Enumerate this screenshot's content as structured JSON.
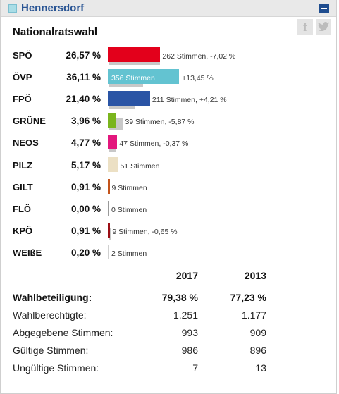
{
  "header": {
    "title": "Hennersdorf"
  },
  "section_title": "Nationalratswahl",
  "colors": {
    "header_title": "#2a5594",
    "collapse_button": "#1f4d8f"
  },
  "icons": {
    "facebook": "f",
    "twitter": "❧"
  },
  "parties": [
    {
      "name": "SPÖ",
      "percent": "26,57 %",
      "info": "262 Stimmen, -7,02 %",
      "share": 26.57,
      "previous_share": 33.59,
      "color": "#e3001b",
      "label_inside": false
    },
    {
      "name": "ÖVP",
      "percent": "36,11 %",
      "info": "356 Stimmen",
      "change": "+13,45 %",
      "share": 36.11,
      "previous_share": 22.66,
      "color": "#63c3d1",
      "label_inside": true
    },
    {
      "name": "FPÖ",
      "percent": "21,40 %",
      "info": "211 Stimmen, +4,21 %",
      "share": 21.4,
      "previous_share": 17.19,
      "color": "#2a54a5",
      "label_inside": false
    },
    {
      "name": "GRÜNE",
      "percent": "3,96 %",
      "info": "39 Stimmen, -5,87 %",
      "share": 3.96,
      "previous_share": 9.83,
      "color": "#7ab51d",
      "label_inside": false
    },
    {
      "name": "NEOS",
      "percent": "4,77 %",
      "info": "47 Stimmen, -0,37 %",
      "share": 4.77,
      "previous_share": 5.14,
      "color": "#e3177d",
      "label_inside": false
    },
    {
      "name": "PILZ",
      "percent": "5,17 %",
      "info": "51 Stimmen",
      "share": 5.17,
      "previous_share": null,
      "color": "#ece0c4",
      "label_inside": false
    },
    {
      "name": "GILT",
      "percent": "0,91 %",
      "info": "9 Stimmen",
      "share": 0.91,
      "previous_share": null,
      "color": "#c4541b",
      "label_inside": false
    },
    {
      "name": "FLÖ",
      "percent": "0,00 %",
      "info": "0 Stimmen",
      "share": 0.0,
      "previous_share": null,
      "color": "#999999",
      "label_inside": false
    },
    {
      "name": "KPÖ",
      "percent": "0,91 %",
      "info": "9 Stimmen, -0,65 %",
      "share": 0.91,
      "previous_share": 1.56,
      "color": "#9b0d14",
      "label_inside": false
    },
    {
      "name": "WEIßE",
      "percent": "0,20 %",
      "info": "2 Stimmen",
      "share": 0.2,
      "previous_share": null,
      "color": "#cfcfcf",
      "label_inside": false
    }
  ],
  "stats": {
    "years": [
      "2017",
      "2013"
    ],
    "rows": [
      {
        "label": "Wahlbeteiligung:",
        "v2017": "79,38 %",
        "v2013": "77,23 %",
        "bold": true
      },
      {
        "label": "Wahlberechtigte:",
        "v2017": "1.251",
        "v2013": "1.177",
        "bold": false
      },
      {
        "label": "Abgegebene Stimmen:",
        "v2017": "993",
        "v2013": "909",
        "bold": false
      },
      {
        "label": "Gültige Stimmen:",
        "v2017": "986",
        "v2013": "896",
        "bold": false
      },
      {
        "label": "Ungültige Stimmen:",
        "v2017": "7",
        "v2013": "13",
        "bold": false
      }
    ]
  }
}
